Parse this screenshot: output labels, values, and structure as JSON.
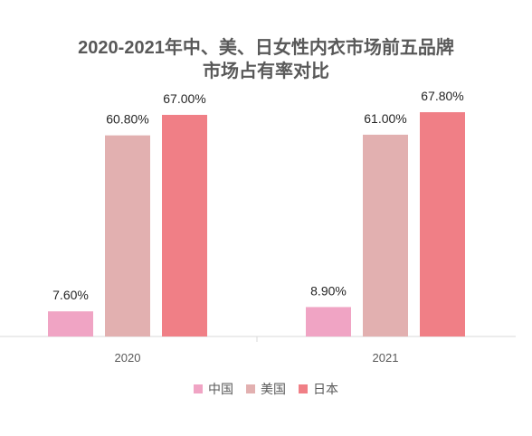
{
  "chart_data": {
    "type": "bar",
    "title": "2020-2021年中、美、日女性内衣市场前五品牌\n市场占有率对比",
    "categories": [
      "2020",
      "2021"
    ],
    "series": [
      {
        "name": "中国",
        "color": "#F0A4C4",
        "values": [
          7.6,
          8.9
        ],
        "labels": [
          "7.60%",
          "8.90%"
        ]
      },
      {
        "name": "美国",
        "color": "#E2B0B0",
        "values": [
          60.8,
          61.0
        ],
        "labels": [
          "60.80%",
          "61.00%"
        ]
      },
      {
        "name": "日本",
        "color": "#F07F86",
        "values": [
          67.0,
          67.8
        ],
        "labels": [
          "67.00%",
          "67.80%"
        ]
      }
    ],
    "xlabel": "",
    "ylabel": "",
    "ylim": [
      0,
      70
    ],
    "grid": false,
    "legend": "bottom"
  }
}
